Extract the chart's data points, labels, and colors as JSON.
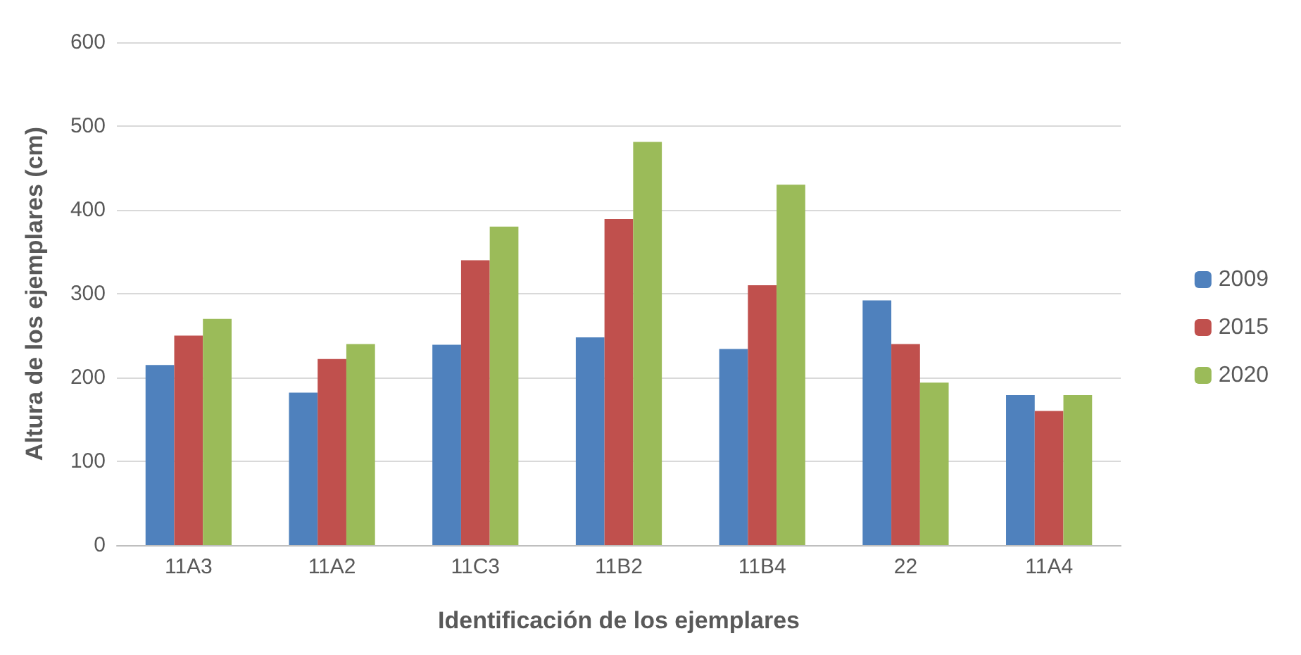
{
  "chart_data": {
    "type": "bar",
    "xlabel": "Identificación de los ejemplares",
    "ylabel": "Altura de los ejemplares (cm)",
    "categories": [
      "11A3",
      "11A2",
      "11C3",
      "11B2",
      "11B4",
      "22",
      "11A4"
    ],
    "series": [
      {
        "name": "2009",
        "color": "#4f81bd",
        "values": [
          215,
          182,
          239,
          248,
          234,
          292,
          179
        ]
      },
      {
        "name": "2015",
        "color": "#c0504d",
        "values": [
          250,
          222,
          340,
          389,
          310,
          240,
          160
        ]
      },
      {
        "name": "2020",
        "color": "#9bbb59",
        "values": [
          270,
          240,
          380,
          481,
          430,
          194,
          179
        ]
      }
    ],
    "ylim": [
      0,
      600
    ],
    "yticks": [
      0,
      100,
      200,
      300,
      400,
      500,
      600
    ],
    "grid": "y",
    "legend": "right"
  }
}
